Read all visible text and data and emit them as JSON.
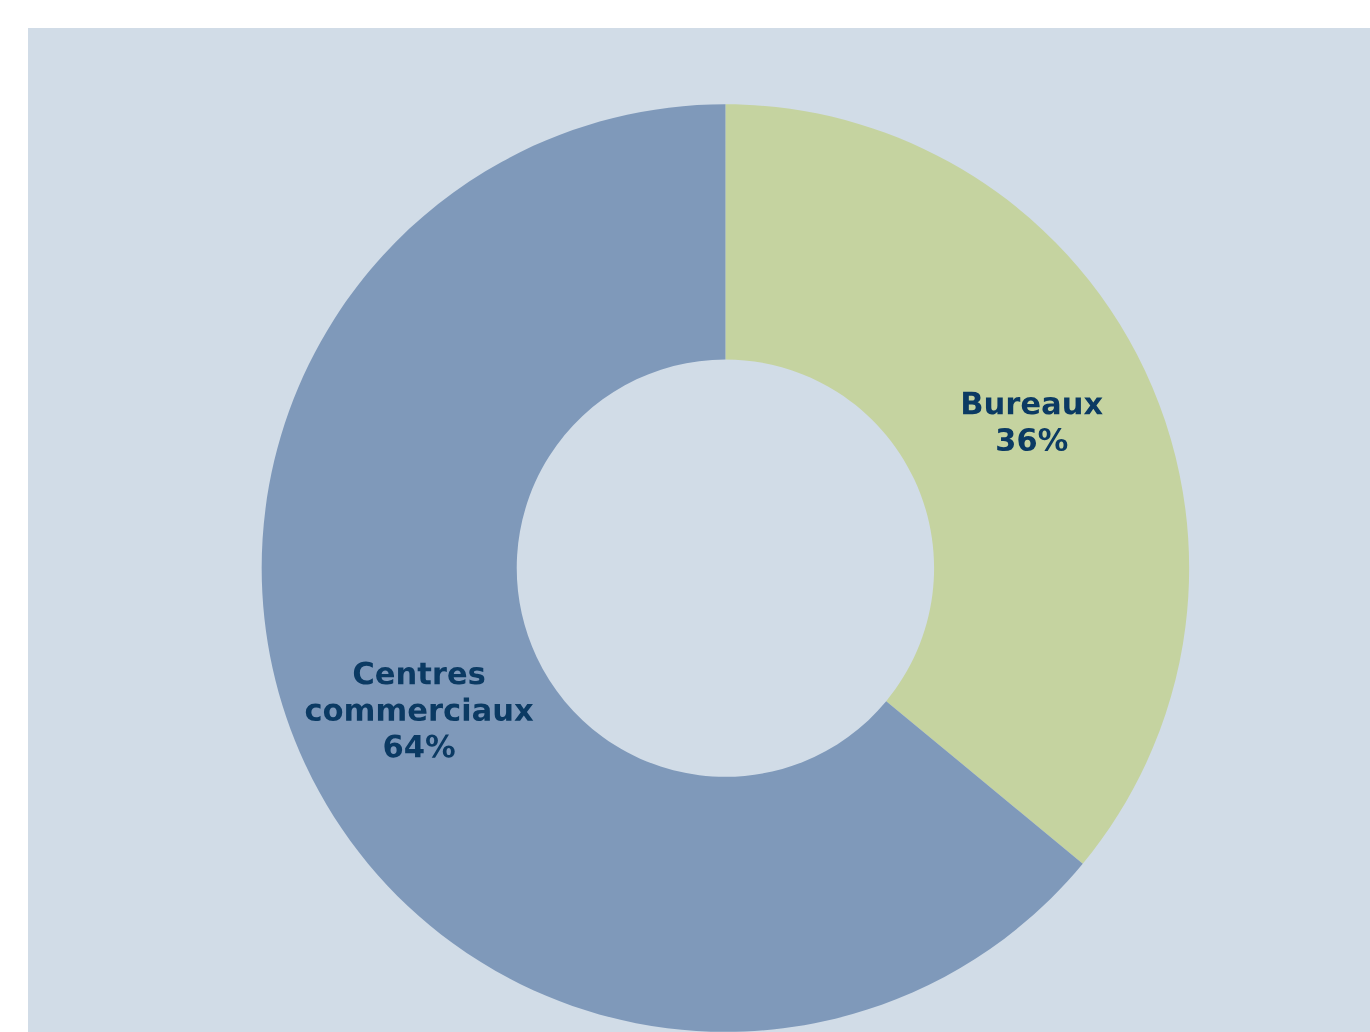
{
  "chart_data": {
    "type": "donut",
    "categories": [
      "Bureaux",
      "Centres commerciaux"
    ],
    "values": [
      36,
      64
    ],
    "colors": [
      "#c5d3a0",
      "#7f99ba"
    ],
    "value_labels": [
      "36%",
      "64%"
    ]
  }
}
